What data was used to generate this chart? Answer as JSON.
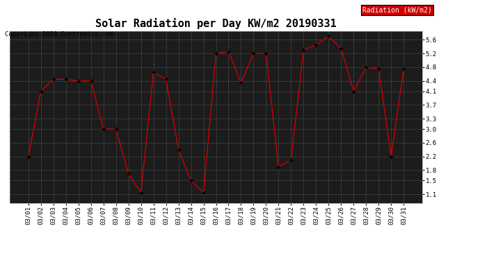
{
  "title": "Solar Radiation per Day KW/m2 20190331",
  "copyright_text": "Copyright 2019 Cartronics.com",
  "legend_label": "Radiation (kW/m2)",
  "dates": [
    "03/01",
    "03/02",
    "03/03",
    "03/04",
    "03/05",
    "03/06",
    "03/07",
    "03/08",
    "03/09",
    "03/10",
    "03/11",
    "03/12",
    "03/13",
    "03/14",
    "03/15",
    "03/16",
    "03/17",
    "03/18",
    "03/19",
    "03/20",
    "03/21",
    "03/22",
    "03/23",
    "03/24",
    "03/25",
    "03/26",
    "03/27",
    "03/28",
    "03/29",
    "03/30",
    "03/31"
  ],
  "values": [
    2.2,
    4.1,
    4.45,
    4.45,
    4.4,
    4.4,
    3.0,
    3.0,
    1.7,
    1.15,
    4.65,
    4.45,
    2.4,
    1.5,
    1.15,
    5.2,
    5.25,
    4.35,
    5.2,
    5.2,
    1.9,
    2.1,
    5.3,
    5.45,
    5.7,
    5.35,
    4.1,
    4.8,
    4.75,
    2.2,
    4.75
  ],
  "line_color": "#cc0000",
  "marker_color": "#000000",
  "outer_bg_color": "#ffffff",
  "plot_bg_color": "#1c1c1c",
  "grid_color": "#555555",
  "legend_bg": "#cc0000",
  "legend_text_color": "#ffffff",
  "ytick_label_color": "#000000",
  "xtick_label_color": "#000000",
  "yticks": [
    1.1,
    1.5,
    1.8,
    2.2,
    2.6,
    3.0,
    3.3,
    3.7,
    4.1,
    4.4,
    4.8,
    5.2,
    5.6
  ],
  "ylim": [
    0.85,
    5.85
  ],
  "title_fontsize": 11,
  "tick_fontsize": 6.5,
  "copyright_fontsize": 6.5,
  "legend_fontsize": 7
}
